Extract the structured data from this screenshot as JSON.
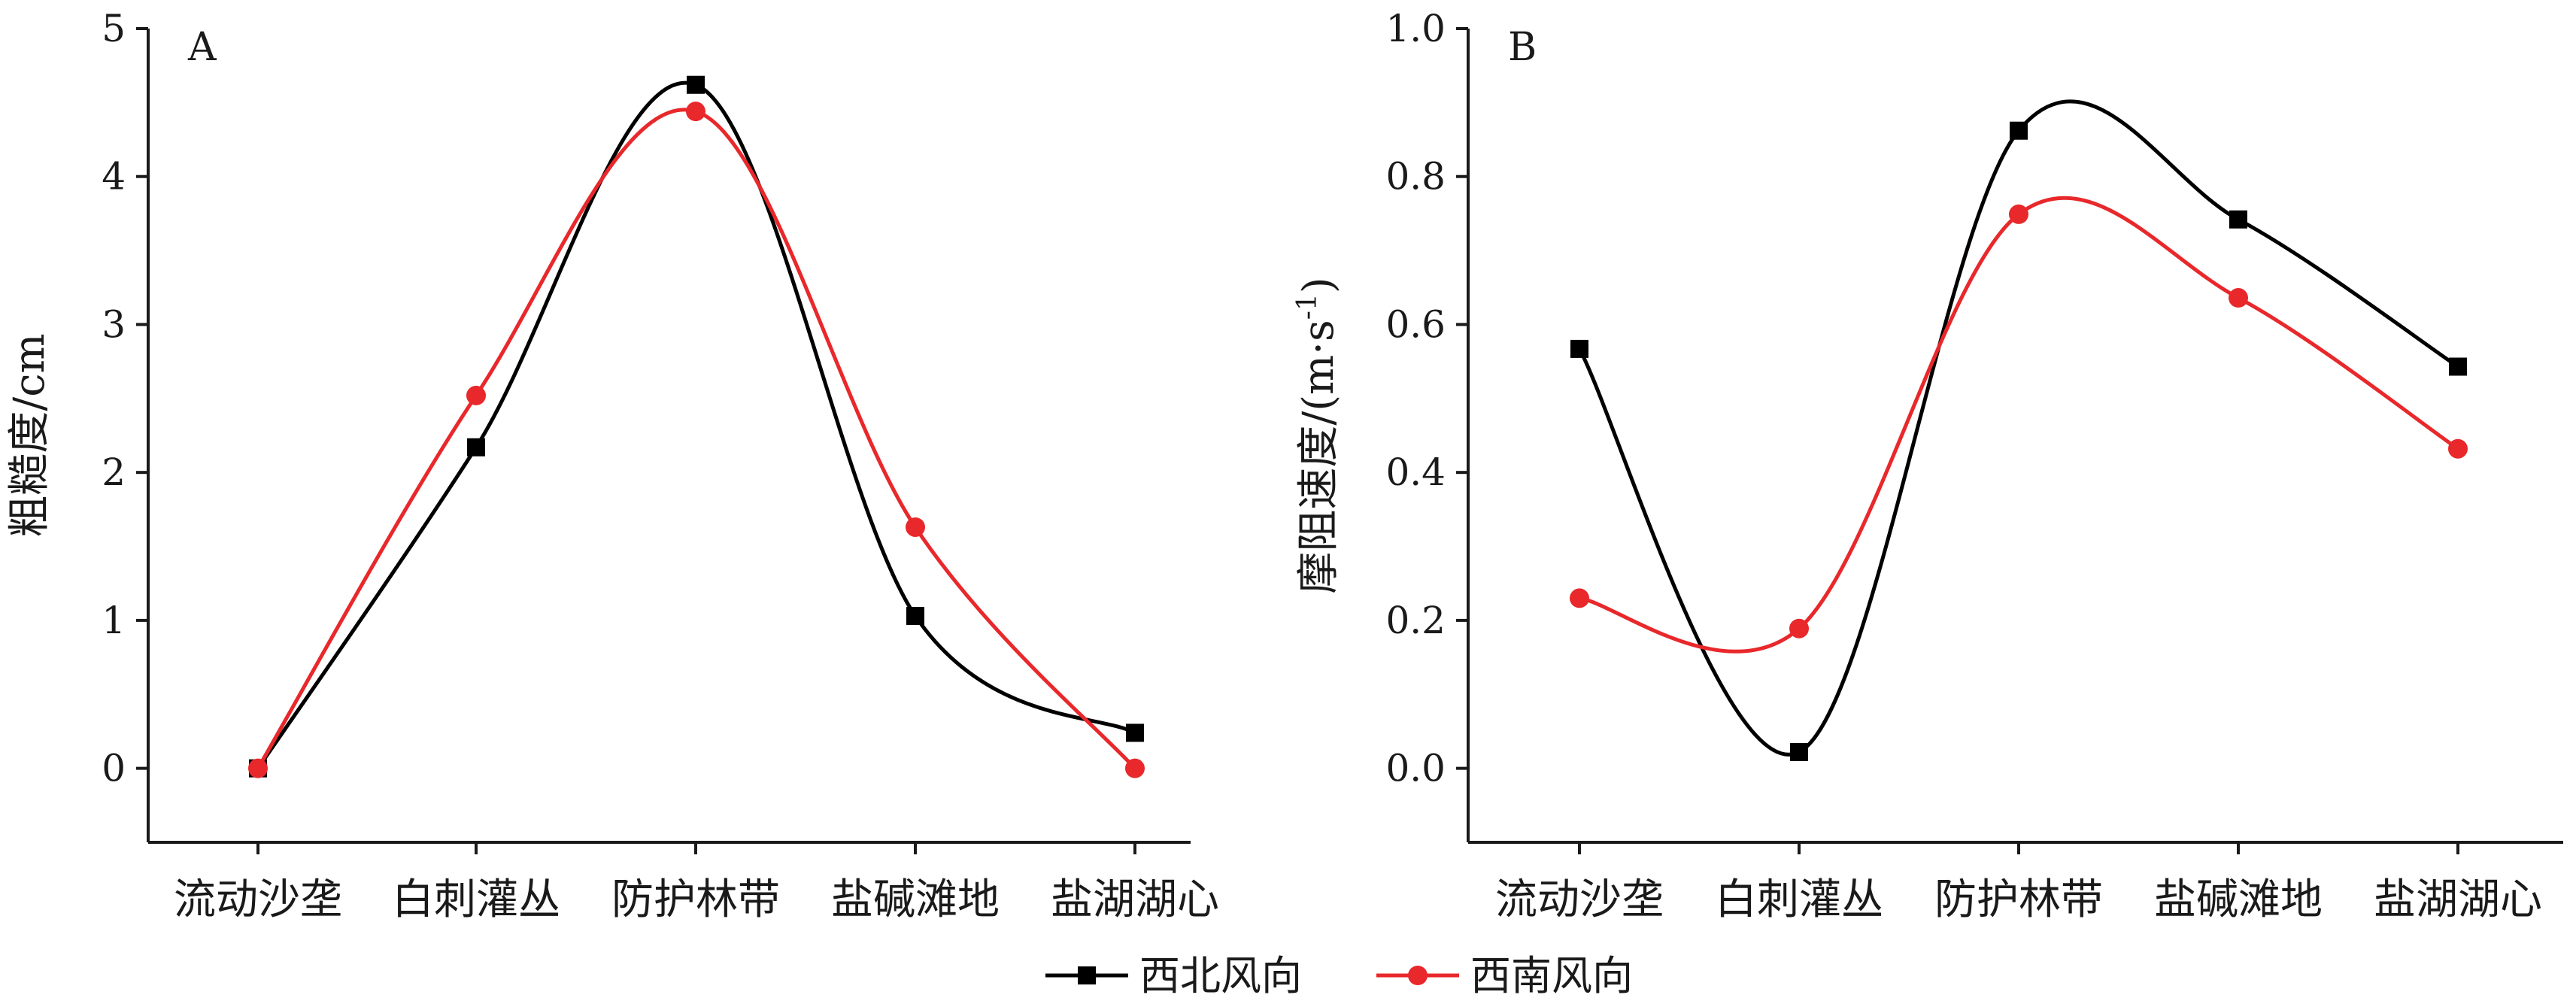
{
  "legend": {
    "items": [
      {
        "label": "西北风向",
        "color": "#000000",
        "marker": "square"
      },
      {
        "label": "西南风向",
        "color": "#e8282b",
        "marker": "circle"
      }
    ]
  },
  "chart_data": [
    {
      "type": "line",
      "panel_label": "A",
      "categories": [
        "流动沙垄",
        "白刺灌丛",
        "防护林带",
        "盐碱滩地",
        "盐湖湖心"
      ],
      "ylabel": "粗糙度/cm",
      "ylim": [
        -0.5,
        5
      ],
      "yticks": [
        0,
        1,
        2,
        3,
        4,
        5
      ],
      "ytick_labels": [
        "0",
        "1",
        "2",
        "3",
        "4",
        "5"
      ],
      "smooth": true,
      "series": [
        {
          "name": "西北风向",
          "color": "#000000",
          "marker": "square",
          "values": [
            0.0,
            2.17,
            4.62,
            1.03,
            0.24
          ]
        },
        {
          "name": "西南风向",
          "color": "#e8282b",
          "marker": "circle",
          "values": [
            0.0,
            2.52,
            4.44,
            1.63,
            0.0
          ]
        }
      ]
    },
    {
      "type": "line",
      "panel_label": "B",
      "categories": [
        "流动沙垄",
        "白刺灌丛",
        "防护林带",
        "盐碱滩地",
        "盐湖湖心"
      ],
      "ylabel": "摩阻速度/(m·s",
      "ylabel_sup": "-1",
      "ylabel_end": ")",
      "ylim": [
        -0.1,
        1.0
      ],
      "yticks": [
        0.0,
        0.2,
        0.4,
        0.6,
        0.8,
        1.0
      ],
      "ytick_labels": [
        "0.0",
        "0.2",
        "0.4",
        "0.6",
        "0.8",
        "1.0"
      ],
      "smooth": true,
      "series": [
        {
          "name": "西北风向",
          "color": "#000000",
          "marker": "square",
          "values": [
            0.567,
            0.022,
            0.862,
            0.742,
            0.543
          ]
        },
        {
          "name": "西南风向",
          "color": "#e8282b",
          "marker": "circle",
          "values": [
            0.23,
            0.189,
            0.749,
            0.636,
            0.432
          ]
        }
      ]
    }
  ]
}
